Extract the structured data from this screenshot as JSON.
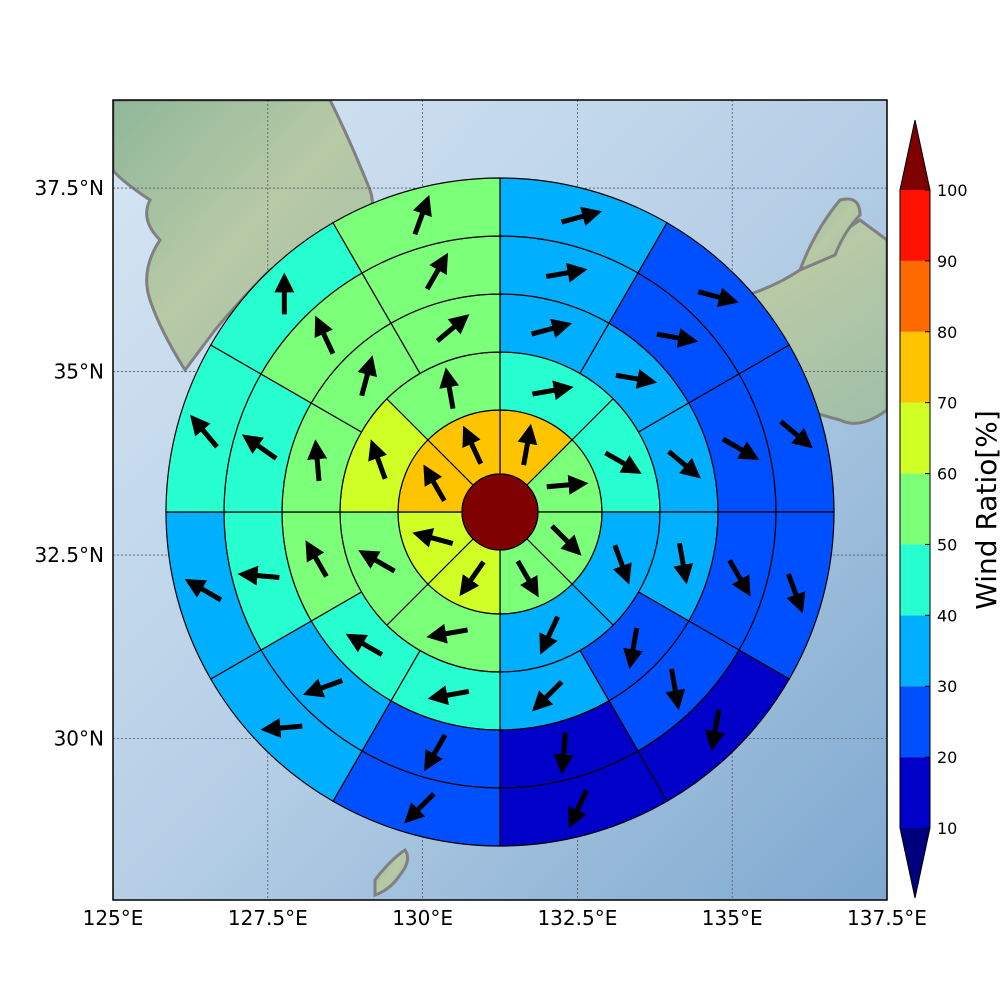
{
  "map": {
    "x_ticks": [
      "125°E",
      "127.5°E",
      "130°E",
      "132.5°E",
      "135°E",
      "137.5°E"
    ],
    "y_ticks": [
      "37.5°N",
      "35°N",
      "32.5°N",
      "30°N"
    ],
    "lon_range": [
      125,
      137.5
    ],
    "lat_range": [
      27.8,
      38.7
    ],
    "grid": true
  },
  "colorbar": {
    "label": "Wind Ratio[%]",
    "ticks": [
      "10",
      "20",
      "30",
      "40",
      "50",
      "60",
      "70",
      "80",
      "90",
      "100"
    ],
    "colors": [
      "#0000c8",
      "#0050ff",
      "#00b0ff",
      "#28ffd0",
      "#7cff79",
      "#d0ff26",
      "#ffc400",
      "#ff6a00",
      "#ff1300"
    ],
    "under_color": "#00007f",
    "over_color": "#7f0000"
  },
  "chart_data": {
    "type": "heatmap",
    "description_units": "wind ratio percent per polar sector; arrow angle = math degrees (0 east, 90 north)",
    "center_value": 100,
    "rings": [
      {
        "ring": 1,
        "sectors": [
          {
            "dir": "N",
            "value": 72,
            "arrow": 80
          },
          {
            "dir": "NE",
            "value": 52,
            "arrow": 5
          },
          {
            "dir": "E",
            "value": 52,
            "arrow": -45
          },
          {
            "dir": "SE",
            "value": 52,
            "arrow": -60
          },
          {
            "dir": "S",
            "value": 65,
            "arrow": 235
          },
          {
            "dir": "SW",
            "value": 65,
            "arrow": 165
          },
          {
            "dir": "W",
            "value": 72,
            "arrow": 120
          },
          {
            "dir": "NW",
            "value": 72,
            "arrow": 115
          }
        ]
      },
      {
        "ring": 2,
        "sectors": [
          {
            "dir": "NNE",
            "value": 45,
            "arrow": 10
          },
          {
            "dir": "ENE",
            "value": 45,
            "arrow": -30
          },
          {
            "dir": "ESE",
            "value": 35,
            "arrow": -70
          },
          {
            "dir": "SSE",
            "value": 35,
            "arrow": 245
          },
          {
            "dir": "SSW",
            "value": 55,
            "arrow": 190
          },
          {
            "dir": "WSW",
            "value": 55,
            "arrow": 150
          },
          {
            "dir": "WNW",
            "value": 65,
            "arrow": 110
          },
          {
            "dir": "NNW",
            "value": 55,
            "arrow": 100
          }
        ]
      },
      {
        "ring": 3,
        "sectors": [
          {
            "dir": "N1",
            "value": 35,
            "arrow": 15
          },
          {
            "dir": "N2",
            "value": 35,
            "arrow": -10
          },
          {
            "dir": "E1",
            "value": 35,
            "arrow": -40
          },
          {
            "dir": "E2",
            "value": 35,
            "arrow": -80
          },
          {
            "dir": "S1",
            "value": 25,
            "arrow": 260
          },
          {
            "dir": "S2",
            "value": 35,
            "arrow": 225
          },
          {
            "dir": "S3",
            "value": 45,
            "arrow": 190
          },
          {
            "dir": "W1",
            "value": 45,
            "arrow": 150
          },
          {
            "dir": "W2",
            "value": 55,
            "arrow": 120
          },
          {
            "dir": "W3",
            "value": 55,
            "arrow": 95
          },
          {
            "dir": "N3",
            "value": 55,
            "arrow": 75
          },
          {
            "dir": "N4",
            "value": 55,
            "arrow": 40
          }
        ]
      },
      {
        "ring": 4,
        "sectors": [
          {
            "dir": "N1",
            "value": 35,
            "arrow": 10
          },
          {
            "dir": "N2",
            "value": 25,
            "arrow": -10
          },
          {
            "dir": "E1",
            "value": 25,
            "arrow": -30
          },
          {
            "dir": "E2",
            "value": 25,
            "arrow": -60
          },
          {
            "dir": "E3",
            "value": 25,
            "arrow": -80
          },
          {
            "dir": "S1",
            "value": 15,
            "arrow": 265
          },
          {
            "dir": "S2",
            "value": 25,
            "arrow": 240
          },
          {
            "dir": "S3",
            "value": 35,
            "arrow": 200
          },
          {
            "dir": "W1",
            "value": 45,
            "arrow": 175
          },
          {
            "dir": "W2",
            "value": 45,
            "arrow": 145
          },
          {
            "dir": "W3",
            "value": 55,
            "arrow": 115
          },
          {
            "dir": "N3",
            "value": 55,
            "arrow": 60
          }
        ]
      },
      {
        "ring": 5,
        "sectors": [
          {
            "dir": "N1",
            "value": 35,
            "arrow": 15
          },
          {
            "dir": "N2",
            "value": 25,
            "arrow": -15
          },
          {
            "dir": "E1",
            "value": 25,
            "arrow": -40
          },
          {
            "dir": "E2",
            "value": 25,
            "arrow": -70
          },
          {
            "dir": "E3",
            "value": 15,
            "arrow": 260
          },
          {
            "dir": "S1",
            "value": 15,
            "arrow": 245
          },
          {
            "dir": "S2",
            "value": 25,
            "arrow": 225
          },
          {
            "dir": "S3",
            "value": 35,
            "arrow": 185
          },
          {
            "dir": "W1",
            "value": 35,
            "arrow": 150
          },
          {
            "dir": "W2",
            "value": 45,
            "arrow": 130
          },
          {
            "dir": "W3",
            "value": 45,
            "arrow": 90
          },
          {
            "dir": "N3",
            "value": 55,
            "arrow": 70
          }
        ]
      },
      {
        "ring": 6,
        "sectors": [
          {
            "dir": "N1",
            "value": 45,
            "arrow": 30
          },
          {
            "dir": "N2",
            "value": 35,
            "arrow": 5
          },
          {
            "dir": "E1",
            "value": 25,
            "arrow": -15
          },
          {
            "dir": "E2",
            "value": 25,
            "arrow": -45
          },
          {
            "dir": "E3",
            "value": 25,
            "arrow": -70
          },
          {
            "dir": "S1",
            "value": 15,
            "arrow": 265
          },
          {
            "dir": "S2",
            "value": 15,
            "arrow": 245
          },
          {
            "dir": "S3",
            "value": 15,
            "arrow": 225
          },
          {
            "dir": "W1",
            "value": 25,
            "arrow": 185
          },
          {
            "dir": "W2",
            "value": 25,
            "arrow": 160
          },
          {
            "dir": "W3",
            "value": 35,
            "arrow": 125
          },
          {
            "dir": "N3",
            "value": 45,
            "arrow": 80
          }
        ]
      }
    ]
  }
}
